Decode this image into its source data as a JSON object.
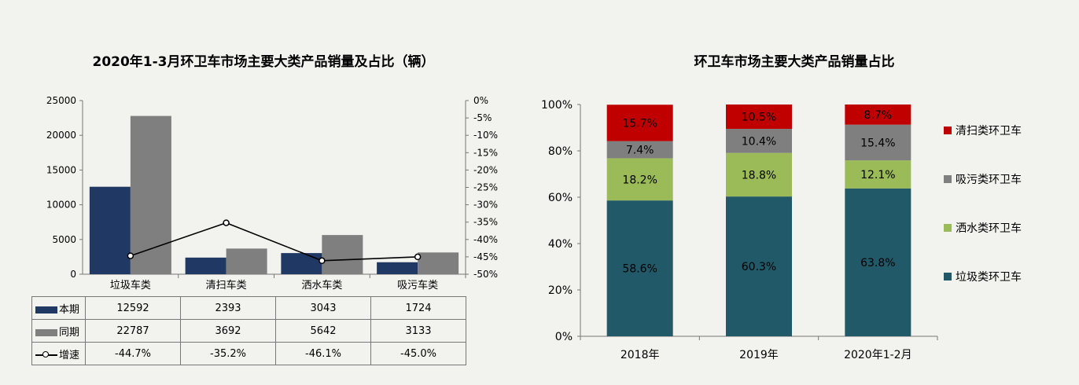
{
  "chart_data": [
    {
      "type": "bar",
      "title": "2020年1-3月环卫车市场主要大类产品销量及占比（辆）",
      "categories": [
        "垃圾车类",
        "清扫车类",
        "洒水车类",
        "吸污车类"
      ],
      "series": [
        {
          "name": "本期",
          "values": [
            12592,
            2393,
            3043,
            1724
          ],
          "color": "#203864"
        },
        {
          "name": "同期",
          "values": [
            22787,
            3692,
            5642,
            3133
          ],
          "color": "#7f7f7f"
        },
        {
          "name": "增速",
          "values": [
            -44.7,
            -35.2,
            -46.1,
            -45.0
          ],
          "type": "line",
          "axis": "right"
        }
      ],
      "y_left": {
        "ylim": [
          0,
          25000
        ],
        "ticks": [
          "0",
          "5000",
          "10000",
          "15000",
          "20000",
          "25000"
        ]
      },
      "y_right": {
        "ylim": [
          -50,
          0
        ],
        "ticks": [
          "0%",
          "-5%",
          "-10%",
          "-15%",
          "-20%",
          "-25%",
          "-30%",
          "-35%",
          "-40%",
          "-45%",
          "-50%"
        ]
      },
      "table": {
        "rows": [
          {
            "label": "本期",
            "values": [
              "12592",
              "2393",
              "3043",
              "1724"
            ]
          },
          {
            "label": "同期",
            "values": [
              "22787",
              "3692",
              "5642",
              "3133"
            ]
          },
          {
            "label": "增速",
            "values": [
              "-44.7%",
              "-35.2%",
              "-46.1%",
              "-45.0%"
            ]
          }
        ]
      }
    },
    {
      "type": "bar",
      "stacked": true,
      "title": "环卫车市场主要大类产品销量占比",
      "categories": [
        "2018年",
        "2019年",
        "2020年1-2月"
      ],
      "series": [
        {
          "name": "垃圾类环卫车",
          "values": [
            58.6,
            60.3,
            63.8
          ],
          "labels": [
            "58.6%",
            "60.3%",
            "63.8%"
          ],
          "color": "#215968"
        },
        {
          "name": "洒水类环卫车",
          "values": [
            18.2,
            18.8,
            12.1
          ],
          "labels": [
            "18.2%",
            "18.8%",
            "12.1%"
          ],
          "color": "#9bbb59"
        },
        {
          "name": "吸污类环卫车",
          "values": [
            7.4,
            10.4,
            15.4
          ],
          "labels": [
            "7.4%",
            "10.4%",
            "15.4%"
          ],
          "color": "#7f7f7f"
        },
        {
          "name": "清扫类环卫车",
          "values": [
            15.7,
            10.5,
            8.7
          ],
          "labels": [
            "15.7%",
            "10.5%",
            "8.7%"
          ],
          "color": "#c00000"
        }
      ],
      "ylim": [
        0,
        100
      ],
      "ticks": [
        "0%",
        "20%",
        "40%",
        "60%",
        "80%",
        "100%"
      ],
      "legend_order": [
        "清扫类环卫车",
        "吸污类环卫车",
        "洒水类环卫车",
        "垃圾类环卫车"
      ],
      "legend": "right"
    }
  ]
}
